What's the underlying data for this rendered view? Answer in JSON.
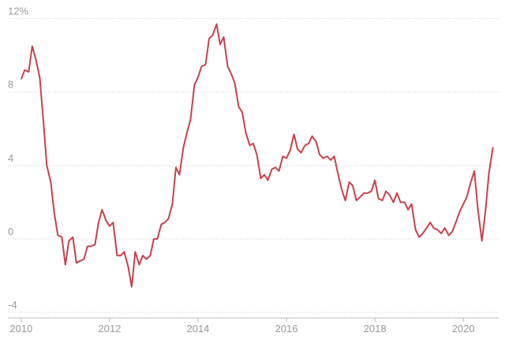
{
  "chart_data": {
    "type": "line",
    "x": [
      2010.0,
      2010.08,
      2010.17,
      2010.25,
      2010.33,
      2010.42,
      2010.5,
      2010.58,
      2010.67,
      2010.75,
      2010.83,
      2010.92,
      2011.0,
      2011.08,
      2011.17,
      2011.25,
      2011.33,
      2011.42,
      2011.5,
      2011.58,
      2011.67,
      2011.75,
      2011.83,
      2011.92,
      2012.0,
      2012.08,
      2012.17,
      2012.25,
      2012.33,
      2012.42,
      2012.5,
      2012.58,
      2012.67,
      2012.75,
      2012.83,
      2012.92,
      2013.0,
      2013.08,
      2013.17,
      2013.25,
      2013.33,
      2013.42,
      2013.5,
      2013.58,
      2013.67,
      2013.75,
      2013.83,
      2013.92,
      2014.0,
      2014.08,
      2014.17,
      2014.25,
      2014.33,
      2014.42,
      2014.5,
      2014.58,
      2014.67,
      2014.75,
      2014.83,
      2014.92,
      2015.0,
      2015.08,
      2015.17,
      2015.25,
      2015.33,
      2015.42,
      2015.5,
      2015.58,
      2015.67,
      2015.75,
      2015.83,
      2015.92,
      2016.0,
      2016.08,
      2016.17,
      2016.25,
      2016.33,
      2016.42,
      2016.5,
      2016.58,
      2016.67,
      2016.75,
      2016.83,
      2016.92,
      2017.0,
      2017.08,
      2017.17,
      2017.25,
      2017.33,
      2017.42,
      2017.5,
      2017.58,
      2017.67,
      2017.75,
      2017.83,
      2017.92,
      2018.0,
      2018.08,
      2018.17,
      2018.25,
      2018.33,
      2018.42,
      2018.5,
      2018.58,
      2018.67,
      2018.75,
      2018.83,
      2018.92,
      2019.0,
      2019.08,
      2019.17,
      2019.25,
      2019.33,
      2019.42,
      2019.5,
      2019.58,
      2019.67,
      2019.75,
      2019.83,
      2019.92,
      2020.0,
      2020.08,
      2020.17,
      2020.25,
      2020.33,
      2020.42,
      2020.5,
      2020.58,
      2020.67
    ],
    "series": [
      {
        "color": "#c8414b",
        "values": [
          8.7,
          9.2,
          9.1,
          10.5,
          9.8,
          8.8,
          6.5,
          4.0,
          3.1,
          1.4,
          0.2,
          0.1,
          -1.4,
          -0.1,
          0.1,
          -1.3,
          -1.2,
          -1.1,
          -0.4,
          -0.4,
          -0.3,
          0.9,
          1.6,
          1.0,
          0.7,
          0.9,
          -0.9,
          -0.9,
          -0.7,
          -1.5,
          -2.6,
          -0.7,
          -1.4,
          -0.9,
          -1.1,
          -0.9,
          0.0,
          0.0,
          0.8,
          0.9,
          1.1,
          1.9,
          3.9,
          3.5,
          5.0,
          5.8,
          6.5,
          8.4,
          8.8,
          9.4,
          9.5,
          10.9,
          11.1,
          11.7,
          10.6,
          11.0,
          9.4,
          9.0,
          8.5,
          7.2,
          6.9,
          5.8,
          5.1,
          5.2,
          4.6,
          3.3,
          3.5,
          3.2,
          3.8,
          3.9,
          3.7,
          4.5,
          4.4,
          4.8,
          5.7,
          4.9,
          4.7,
          5.1,
          5.2,
          5.6,
          5.3,
          4.6,
          4.4,
          4.5,
          4.3,
          4.5,
          3.5,
          2.7,
          2.1,
          3.1,
          2.9,
          2.1,
          2.3,
          2.5,
          2.5,
          2.6,
          3.2,
          2.2,
          2.1,
          2.6,
          2.4,
          2.0,
          2.5,
          2.0,
          2.0,
          1.6,
          1.9,
          0.5,
          0.1,
          0.3,
          0.6,
          0.9,
          0.6,
          0.5,
          0.3,
          0.6,
          0.2,
          0.4,
          0.9,
          1.5,
          1.9,
          2.3,
          3.1,
          3.7,
          1.6,
          -0.1,
          1.5,
          3.6,
          5.0
        ]
      }
    ],
    "xlim": [
      2009.7,
      2020.8
    ],
    "xticks": [
      2010,
      2012,
      2014,
      2016,
      2018,
      2020
    ],
    "ylim": [
      -4.3,
      12.5
    ],
    "yticks": [
      {
        "value": 12,
        "label": "12%"
      },
      8,
      4,
      0,
      -4
    ],
    "grid": true
  }
}
